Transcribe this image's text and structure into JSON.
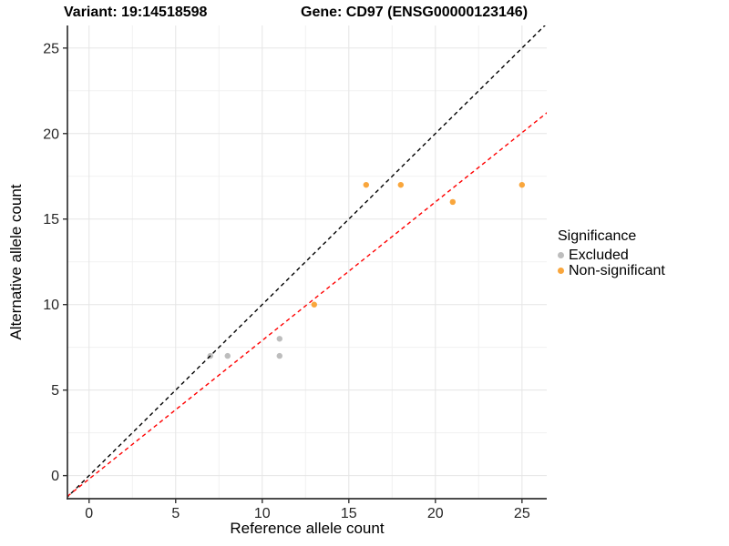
{
  "title": {
    "variant": "Variant: 19:14518598",
    "gene": "Gene: CD97 (ENSG00000123146)"
  },
  "chart_data": {
    "type": "scatter",
    "title": "Variant: 19:14518598    Gene: CD97 (ENSG00000123146)",
    "xlabel": "Reference allele count",
    "ylabel": "Alternative allele count",
    "xlim": [
      -1.25,
      26.43
    ],
    "ylim": [
      -1.35,
      26.32
    ],
    "x_ticks": [
      0,
      5,
      10,
      15,
      20,
      25
    ],
    "y_ticks": [
      0,
      5,
      10,
      15,
      20,
      25
    ],
    "x_minor_ticks": [
      2.5,
      7.5,
      12.5,
      17.5,
      22.5
    ],
    "y_minor_ticks": [
      2.5,
      7.5,
      12.5,
      17.5,
      22.5
    ],
    "grid": true,
    "legend": {
      "title": "Significance",
      "position": "right",
      "items": [
        {
          "label": "Excluded",
          "color": "#BDBDBD"
        },
        {
          "label": "Non-significant",
          "color": "#F9A63C"
        }
      ]
    },
    "series": [
      {
        "name": "Excluded",
        "color": "#BDBDBD",
        "points": [
          [
            7,
            7
          ],
          [
            8,
            7
          ],
          [
            11,
            7
          ],
          [
            11,
            8
          ]
        ]
      },
      {
        "name": "Non-significant",
        "color": "#F9A63C",
        "points": [
          [
            13,
            10
          ],
          [
            16,
            17
          ],
          [
            18,
            17
          ],
          [
            21,
            16
          ],
          [
            25,
            17
          ]
        ]
      }
    ],
    "lines": [
      {
        "name": "identity-line",
        "slope": 1,
        "intercept": 0,
        "color": "#000000",
        "style": "dashed"
      },
      {
        "name": "fit-line",
        "slope": 0.81,
        "intercept": -0.2,
        "color": "#FF0000",
        "style": "dashed"
      }
    ],
    "colors": {
      "grid_major": "#E5E5E5",
      "grid_minor": "#F1F1F1",
      "axis_line": "#333333",
      "tick_text": "#262626"
    }
  }
}
